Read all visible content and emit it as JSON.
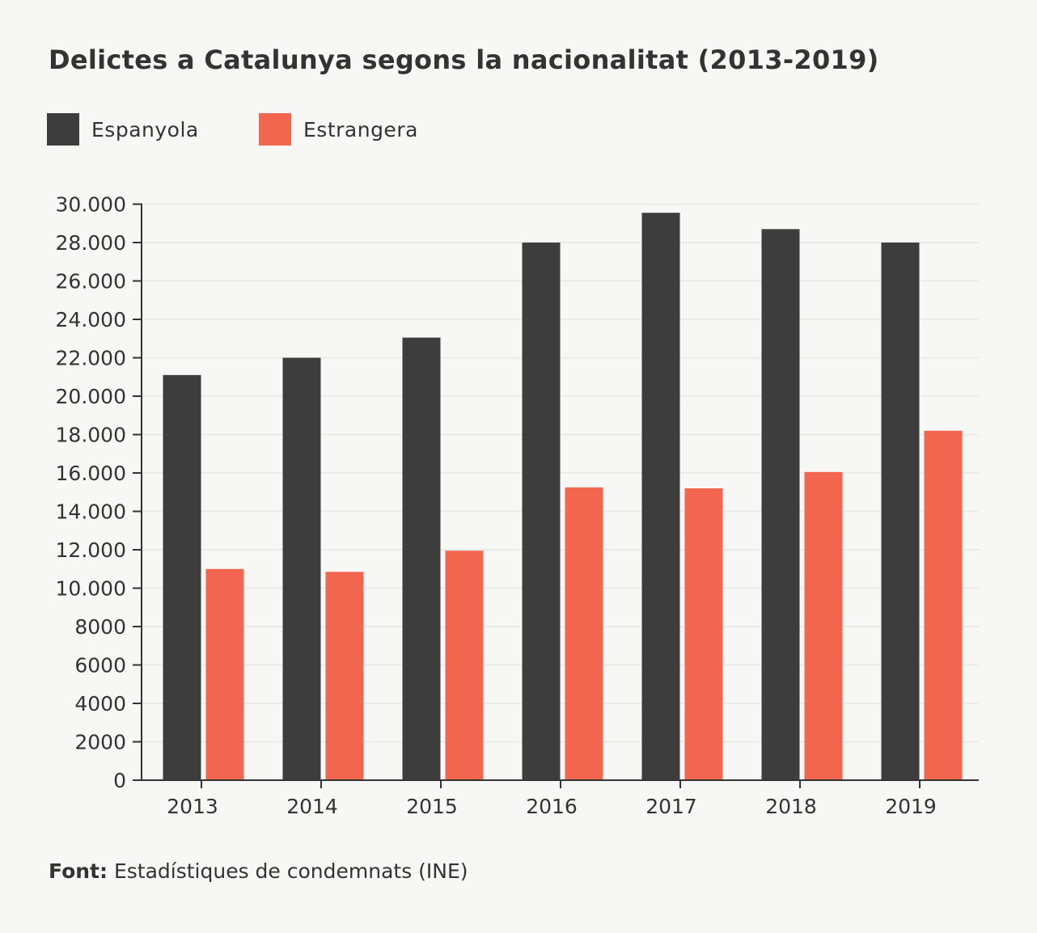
{
  "chart_data": {
    "type": "bar",
    "title": "Delictes a Catalunya segons la nacionalitat (2013-2019)",
    "categories": [
      "2013",
      "2014",
      "2015",
      "2016",
      "2017",
      "2018",
      "2019"
    ],
    "series": [
      {
        "name": "Espanyola",
        "color": "#3d3d3d",
        "values": [
          21100,
          22000,
          23050,
          28000,
          29550,
          28700,
          28000
        ]
      },
      {
        "name": "Estrangera",
        "color": "#f2654e",
        "values": [
          11000,
          10850,
          11950,
          15250,
          15200,
          16050,
          18200
        ]
      }
    ],
    "ylim": [
      0,
      30000
    ],
    "yticks": [
      0,
      2000,
      4000,
      6000,
      8000,
      10000,
      12000,
      14000,
      16000,
      18000,
      20000,
      22000,
      24000,
      26000,
      28000,
      30000
    ],
    "ytick_labels": [
      "0",
      "2000",
      "4000",
      "6000",
      "8000",
      "10.000",
      "12.000",
      "14.000",
      "16.000",
      "18.000",
      "20.000",
      "22.000",
      "24.000",
      "26.000",
      "28.000",
      "30.000"
    ],
    "grid": true,
    "legend": "top-left",
    "xlabel": "",
    "ylabel": ""
  },
  "source": {
    "label": "Font:",
    "text": " Estadístiques de condemnats (INE)"
  }
}
